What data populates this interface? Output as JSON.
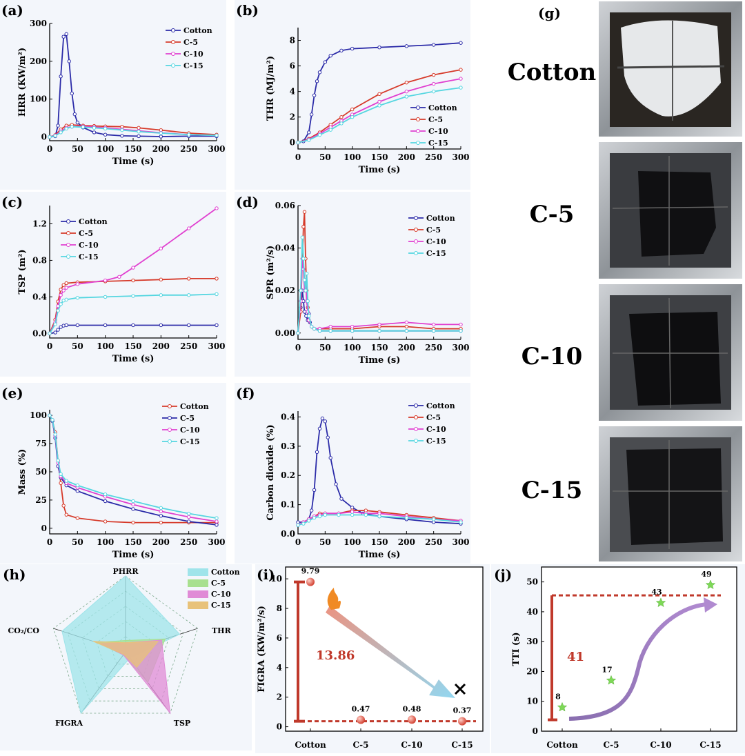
{
  "chart_data": [
    {
      "id": "a",
      "panel_label": "(a)",
      "type": "line",
      "xlabel": "Time (s)",
      "ylabel": "HRR (KW/m²)",
      "xlim": [
        0,
        300
      ],
      "ylim": [
        -10,
        300
      ],
      "xticks": [
        0,
        50,
        100,
        150,
        200,
        250,
        300
      ],
      "yticks": [
        0,
        100,
        200,
        300
      ],
      "legend_position": "top-right",
      "series": [
        {
          "name": "Cotton",
          "color": "#2b2ba8",
          "x": [
            0,
            10,
            15,
            20,
            25,
            30,
            35,
            40,
            45,
            50,
            60,
            80,
            100,
            130,
            160,
            200,
            250,
            300
          ],
          "y": [
            0,
            2,
            30,
            160,
            265,
            272,
            200,
            115,
            60,
            38,
            25,
            12,
            6,
            3,
            2,
            1,
            2,
            2
          ]
        },
        {
          "name": "C-5",
          "color": "#d63a2a",
          "x": [
            0,
            10,
            20,
            30,
            40,
            60,
            80,
            100,
            130,
            160,
            200,
            250,
            300
          ],
          "y": [
            0,
            5,
            20,
            30,
            32,
            30,
            29,
            28,
            27,
            24,
            18,
            10,
            6
          ]
        },
        {
          "name": "C-10",
          "color": "#e040d0",
          "x": [
            0,
            10,
            20,
            30,
            40,
            60,
            80,
            100,
            130,
            160,
            200,
            250,
            300
          ],
          "y": [
            0,
            4,
            15,
            24,
            27,
            28,
            26,
            24,
            20,
            16,
            11,
            6,
            4
          ]
        },
        {
          "name": "C-15",
          "color": "#55d6e0",
          "x": [
            0,
            10,
            20,
            30,
            40,
            60,
            80,
            100,
            130,
            160,
            200,
            250,
            300
          ],
          "y": [
            0,
            3,
            12,
            22,
            27,
            26,
            24,
            22,
            18,
            14,
            10,
            6,
            4
          ]
        }
      ]
    },
    {
      "id": "b",
      "panel_label": "(b)",
      "type": "line",
      "xlabel": "Time (s)",
      "ylabel": "THR (MJ/m²)",
      "xlim": [
        0,
        300
      ],
      "ylim": [
        -0.5,
        9
      ],
      "xticks": [
        0,
        50,
        100,
        150,
        200,
        250,
        300
      ],
      "yticks": [
        0,
        2,
        4,
        6,
        8
      ],
      "legend_position": "bottom-right",
      "series": [
        {
          "name": "Cotton",
          "color": "#2b2ba8",
          "x": [
            0,
            10,
            20,
            25,
            30,
            35,
            40,
            50,
            60,
            80,
            100,
            150,
            200,
            250,
            300
          ],
          "y": [
            0,
            0.1,
            0.8,
            2.2,
            3.7,
            4.8,
            5.5,
            6.3,
            6.8,
            7.2,
            7.35,
            7.45,
            7.55,
            7.65,
            7.8
          ]
        },
        {
          "name": "C-5",
          "color": "#d63a2a",
          "x": [
            0,
            20,
            40,
            60,
            80,
            100,
            150,
            200,
            250,
            300
          ],
          "y": [
            0,
            0.3,
            0.8,
            1.4,
            2.0,
            2.6,
            3.8,
            4.7,
            5.3,
            5.7
          ]
        },
        {
          "name": "C-10",
          "color": "#e040d0",
          "x": [
            0,
            20,
            40,
            60,
            80,
            100,
            150,
            200,
            250,
            300
          ],
          "y": [
            0,
            0.25,
            0.7,
            1.2,
            1.7,
            2.2,
            3.2,
            4.0,
            4.6,
            5.0
          ]
        },
        {
          "name": "C-15",
          "color": "#55d6e0",
          "x": [
            0,
            20,
            40,
            60,
            80,
            100,
            150,
            200,
            250,
            300
          ],
          "y": [
            0,
            0.2,
            0.6,
            1.0,
            1.5,
            2.0,
            2.9,
            3.6,
            4.0,
            4.3
          ]
        }
      ]
    },
    {
      "id": "c",
      "panel_label": "(c)",
      "type": "line",
      "xlabel": "Time (s)",
      "ylabel": "TSP (m²)",
      "xlim": [
        0,
        300
      ],
      "ylim": [
        -0.05,
        1.4
      ],
      "xticks": [
        0,
        50,
        100,
        150,
        200,
        250,
        300
      ],
      "yticks": [
        0.0,
        0.4,
        0.8,
        1.2
      ],
      "ytick_labels": [
        "0.0",
        "0.4",
        "0.8",
        "1.2"
      ],
      "legend_position": "top-left",
      "series": [
        {
          "name": "Cotton",
          "color": "#2b2ba8",
          "x": [
            0,
            10,
            15,
            20,
            25,
            30,
            50,
            100,
            150,
            200,
            250,
            300
          ],
          "y": [
            0,
            0.01,
            0.04,
            0.07,
            0.085,
            0.09,
            0.09,
            0.09,
            0.09,
            0.09,
            0.09,
            0.09
          ]
        },
        {
          "name": "C-5",
          "color": "#d63a2a",
          "x": [
            0,
            10,
            15,
            20,
            25,
            30,
            50,
            100,
            150,
            200,
            250,
            300
          ],
          "y": [
            0,
            0.15,
            0.35,
            0.48,
            0.53,
            0.55,
            0.56,
            0.57,
            0.58,
            0.59,
            0.6,
            0.6
          ]
        },
        {
          "name": "C-10",
          "color": "#e040d0",
          "x": [
            0,
            10,
            15,
            20,
            25,
            30,
            50,
            100,
            125,
            150,
            200,
            250,
            300
          ],
          "y": [
            0,
            0.12,
            0.3,
            0.42,
            0.47,
            0.5,
            0.54,
            0.58,
            0.62,
            0.72,
            0.93,
            1.15,
            1.37
          ]
        },
        {
          "name": "C-15",
          "color": "#55d6e0",
          "x": [
            0,
            10,
            15,
            20,
            25,
            30,
            50,
            100,
            150,
            200,
            250,
            300
          ],
          "y": [
            0,
            0.1,
            0.25,
            0.32,
            0.36,
            0.37,
            0.39,
            0.4,
            0.41,
            0.42,
            0.42,
            0.43
          ]
        }
      ]
    },
    {
      "id": "d",
      "panel_label": "(d)",
      "type": "line",
      "xlabel": "Time (s)",
      "ylabel": "SPR (m²/s)",
      "xlim": [
        0,
        300
      ],
      "ylim": [
        -0.003,
        0.06
      ],
      "xticks": [
        0,
        50,
        100,
        150,
        200,
        250,
        300
      ],
      "yticks": [
        0.0,
        0.02,
        0.04,
        0.06
      ],
      "ytick_labels": [
        "0.00",
        "0.02",
        "0.04",
        "0.06"
      ],
      "legend_position": "top-right",
      "series": [
        {
          "name": "Cotton",
          "color": "#2b2ba8",
          "x": [
            0,
            5,
            8,
            10,
            12,
            15,
            18,
            20,
            22,
            25,
            30,
            40,
            60,
            100,
            150,
            200,
            250,
            300
          ],
          "y": [
            0,
            0.012,
            0.02,
            0.015,
            0.01,
            0.008,
            0.006,
            0.009,
            0.005,
            0.003,
            0.002,
            0.001,
            0.001,
            0.001,
            0.001,
            0.001,
            0.001,
            0.001
          ]
        },
        {
          "name": "C-5",
          "color": "#d63a2a",
          "x": [
            0,
            5,
            8,
            10,
            12,
            14,
            16,
            18,
            20,
            25,
            30,
            40,
            60,
            100,
            150,
            200,
            250,
            300
          ],
          "y": [
            0,
            0.01,
            0.035,
            0.05,
            0.057,
            0.035,
            0.02,
            0.012,
            0.006,
            0.003,
            0.002,
            0.002,
            0.002,
            0.002,
            0.003,
            0.003,
            0.002,
            0.002
          ]
        },
        {
          "name": "C-10",
          "color": "#e040d0",
          "x": [
            0,
            5,
            8,
            10,
            12,
            14,
            16,
            18,
            20,
            25,
            30,
            40,
            60,
            100,
            150,
            200,
            250,
            300
          ],
          "y": [
            0,
            0.015,
            0.035,
            0.03,
            0.02,
            0.025,
            0.015,
            0.01,
            0.006,
            0.003,
            0.002,
            0.002,
            0.003,
            0.003,
            0.004,
            0.005,
            0.004,
            0.004
          ]
        },
        {
          "name": "C-15",
          "color": "#55d6e0",
          "x": [
            0,
            5,
            8,
            10,
            12,
            14,
            16,
            18,
            20,
            25,
            30,
            40,
            60,
            100,
            150,
            200,
            250,
            300
          ],
          "y": [
            0,
            0.02,
            0.045,
            0.035,
            0.025,
            0.02,
            0.028,
            0.015,
            0.008,
            0.003,
            0.002,
            0.001,
            0.001,
            0.001,
            0.001,
            0.001,
            0.001,
            0.001
          ]
        }
      ]
    },
    {
      "id": "e",
      "panel_label": "(e)",
      "type": "line",
      "xlabel": "Time (s)",
      "ylabel": "Mass (%)",
      "xlim": [
        0,
        300
      ],
      "ylim": [
        -5,
        105
      ],
      "xticks": [
        0,
        50,
        100,
        150,
        200,
        250,
        300
      ],
      "yticks": [
        0,
        25,
        50,
        75,
        100
      ],
      "legend_position": "top-right",
      "series": [
        {
          "name": "Cotton",
          "color": "#d63a2a",
          "x": [
            0,
            5,
            10,
            15,
            20,
            25,
            30,
            50,
            100,
            150,
            200,
            250,
            300
          ],
          "y": [
            100,
            95,
            85,
            60,
            40,
            20,
            12,
            9,
            6,
            5,
            5,
            5,
            5
          ]
        },
        {
          "name": "C-5",
          "color": "#2b2ba8",
          "x": [
            0,
            5,
            10,
            15,
            20,
            30,
            50,
            100,
            150,
            200,
            250,
            300
          ],
          "y": [
            100,
            95,
            80,
            55,
            45,
            38,
            33,
            24,
            17,
            11,
            6,
            3
          ]
        },
        {
          "name": "C-10",
          "color": "#e040d0",
          "x": [
            0,
            5,
            10,
            15,
            20,
            30,
            50,
            100,
            150,
            200,
            250,
            300
          ],
          "y": [
            100,
            96,
            82,
            58,
            46,
            40,
            36,
            28,
            21,
            15,
            10,
            6
          ]
        },
        {
          "name": "C-15",
          "color": "#55d6e0",
          "x": [
            0,
            5,
            10,
            15,
            20,
            30,
            50,
            100,
            150,
            200,
            250,
            300
          ],
          "y": [
            100,
            96,
            83,
            60,
            48,
            42,
            38,
            30,
            24,
            18,
            13,
            9
          ]
        }
      ]
    },
    {
      "id": "f",
      "panel_label": "(f)",
      "type": "line",
      "xlabel": "Time (s)",
      "ylabel": "Carbon dioxide (%)",
      "xlim": [
        0,
        300
      ],
      "ylim": [
        0,
        0.42
      ],
      "xticks": [
        0,
        50,
        100,
        150,
        200,
        250,
        300
      ],
      "yticks": [
        0.0,
        0.1,
        0.2,
        0.3,
        0.4
      ],
      "ytick_labels": [
        "0.0",
        "0.1",
        "0.2",
        "0.3",
        "0.4"
      ],
      "legend_position": "top-right",
      "series": [
        {
          "name": "Cotton",
          "color": "#2b2ba8",
          "x": [
            0,
            10,
            20,
            25,
            30,
            35,
            40,
            45,
            50,
            55,
            60,
            70,
            80,
            100,
            120,
            150,
            200,
            250,
            300
          ],
          "y": [
            0.04,
            0.04,
            0.05,
            0.08,
            0.15,
            0.28,
            0.36,
            0.395,
            0.385,
            0.33,
            0.26,
            0.17,
            0.12,
            0.09,
            0.07,
            0.06,
            0.05,
            0.04,
            0.035
          ]
        },
        {
          "name": "C-5",
          "color": "#d63a2a",
          "x": [
            0,
            10,
            20,
            30,
            40,
            50,
            75,
            100,
            125,
            150,
            200,
            250,
            300
          ],
          "y": [
            0.03,
            0.04,
            0.05,
            0.06,
            0.07,
            0.07,
            0.07,
            0.08,
            0.08,
            0.075,
            0.065,
            0.055,
            0.045
          ]
        },
        {
          "name": "C-10",
          "color": "#e040d0",
          "x": [
            0,
            10,
            20,
            30,
            40,
            50,
            75,
            100,
            125,
            150,
            200,
            250,
            300
          ],
          "y": [
            0.03,
            0.04,
            0.05,
            0.06,
            0.065,
            0.07,
            0.07,
            0.075,
            0.07,
            0.07,
            0.06,
            0.05,
            0.045
          ]
        },
        {
          "name": "C-15",
          "color": "#55d6e0",
          "x": [
            0,
            10,
            20,
            30,
            40,
            50,
            75,
            100,
            125,
            150,
            200,
            250,
            300
          ],
          "y": [
            0.03,
            0.035,
            0.045,
            0.055,
            0.06,
            0.065,
            0.065,
            0.065,
            0.065,
            0.06,
            0.055,
            0.05,
            0.04
          ]
        }
      ]
    },
    {
      "id": "h",
      "panel_label": "(h)",
      "type": "radar",
      "axes": [
        "PHRR",
        "THR",
        "TSP",
        "FIGRA",
        "CO₂/CO"
      ],
      "legend_position": "top-right",
      "series": [
        {
          "name": "Cotton",
          "color": "#9fe4ea",
          "values": [
            1.0,
            0.75,
            0.1,
            1.0,
            0.88
          ]
        },
        {
          "name": "C-5",
          "color": "#a8e08f",
          "values": [
            0.15,
            0.55,
            0.5,
            0.05,
            0.4
          ]
        },
        {
          "name": "C-10",
          "color": "#e08bd6",
          "values": [
            0.12,
            0.5,
            1.0,
            0.05,
            0.35
          ]
        },
        {
          "name": "C-15",
          "color": "#e8c27a",
          "values": [
            0.12,
            0.45,
            0.25,
            0.04,
            0.45
          ]
        }
      ]
    },
    {
      "id": "i",
      "panel_label": "(i)",
      "type": "scatter",
      "ylabel": "FIGRA (KW/m²/s)",
      "xlabel": "",
      "categories": [
        "Cotton",
        "C-5",
        "C-10",
        "C-15"
      ],
      "values": [
        9.79,
        0.47,
        0.48,
        0.37
      ],
      "value_labels": [
        "9.79",
        "0.47",
        "0.48",
        "0.37"
      ],
      "ylim": [
        -0.3,
        10.8
      ],
      "yticks": [
        0,
        2,
        4,
        6,
        8,
        10
      ],
      "annotation": "13.86"
    },
    {
      "id": "j",
      "panel_label": "(j)",
      "type": "scatter",
      "ylabel": "TTI (s)",
      "xlabel": "",
      "categories": [
        "Cotton",
        "C-5",
        "C-10",
        "C-15"
      ],
      "values": [
        8,
        17,
        43,
        49
      ],
      "value_labels": [
        "8",
        "17",
        "43",
        "49"
      ],
      "ylim": [
        0,
        55
      ],
      "yticks": [
        0,
        10,
        20,
        30,
        40,
        50
      ],
      "annotation": "41"
    }
  ],
  "photos": {
    "panel_label": "(g)",
    "samples": [
      "Cotton",
      "C-5",
      "C-10",
      "C-15"
    ]
  }
}
